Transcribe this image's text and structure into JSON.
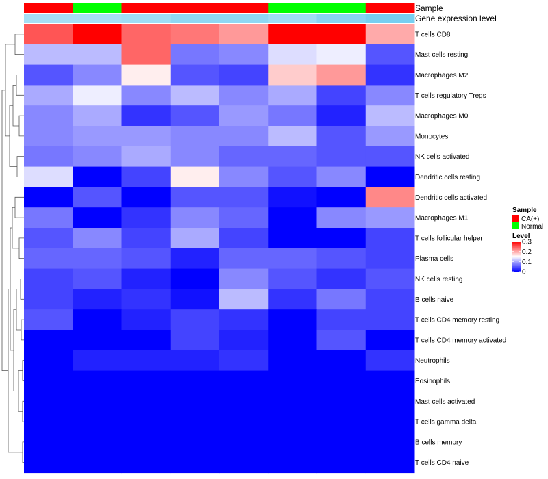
{
  "chart_data": {
    "type": "heatmap",
    "annotation_rows": {
      "sample_label": "Sample",
      "expression_label": "Gene expression level"
    },
    "columns": [
      {
        "sample": "CA(+)",
        "expression_level": 0.55
      },
      {
        "sample": "Normal",
        "expression_level": 0.55
      },
      {
        "sample": "CA(+)",
        "expression_level": 0.5
      },
      {
        "sample": "CA(+)",
        "expression_level": 0.4
      },
      {
        "sample": "CA(+)",
        "expression_level": 0.4
      },
      {
        "sample": "Normal",
        "expression_level": 0.5
      },
      {
        "sample": "Normal",
        "expression_level": 0.35
      },
      {
        "sample": "CA(+)",
        "expression_level": 0.25
      }
    ],
    "rows": [
      "T cells CD8",
      "Mast cells resting",
      "Macrophages M2",
      "T cells regulatory  Tregs",
      "Macrophages M0",
      "Monocytes",
      "NK cells activated",
      "Dendritic cells resting",
      "Dendritic cells activated",
      "Macrophages M1",
      "T cells follicular helper",
      "Plasma cells",
      "NK cells resting",
      "B cells naive",
      "T cells CD4 memory resting",
      "T cells CD4 memory activated",
      "Neutrophils",
      "Eosinophils",
      "Mast cells activated",
      "T cells gamma delta",
      "B cells memory",
      "T cells CD4 naive"
    ],
    "values": [
      [
        0.25,
        0.3,
        0.24,
        0.23,
        0.21,
        0.3,
        0.3,
        0.2
      ],
      [
        0.11,
        0.11,
        0.24,
        0.07,
        0.08,
        0.13,
        0.14,
        0.05
      ],
      [
        0.05,
        0.08,
        0.16,
        0.05,
        0.04,
        0.18,
        0.21,
        0.03
      ],
      [
        0.1,
        0.14,
        0.08,
        0.11,
        0.08,
        0.1,
        0.04,
        0.08
      ],
      [
        0.08,
        0.1,
        0.03,
        0.05,
        0.09,
        0.07,
        0.02,
        0.11
      ],
      [
        0.08,
        0.09,
        0.09,
        0.08,
        0.08,
        0.11,
        0.05,
        0.09
      ],
      [
        0.07,
        0.08,
        0.1,
        0.08,
        0.06,
        0.06,
        0.05,
        0.05
      ],
      [
        0.13,
        0.0,
        0.04,
        0.16,
        0.08,
        0.05,
        0.08,
        0.0
      ],
      [
        0.0,
        0.05,
        0.0,
        0.05,
        0.05,
        0.01,
        0.0,
        0.22
      ],
      [
        0.07,
        0.0,
        0.03,
        0.08,
        0.06,
        0.0,
        0.08,
        0.09
      ],
      [
        0.05,
        0.08,
        0.04,
        0.1,
        0.04,
        0.0,
        0.0,
        0.04
      ],
      [
        0.06,
        0.06,
        0.05,
        0.02,
        0.06,
        0.06,
        0.05,
        0.04
      ],
      [
        0.04,
        0.05,
        0.02,
        0.0,
        0.08,
        0.05,
        0.03,
        0.05
      ],
      [
        0.04,
        0.02,
        0.03,
        0.01,
        0.11,
        0.03,
        0.07,
        0.04
      ],
      [
        0.05,
        0.0,
        0.02,
        0.04,
        0.03,
        0.0,
        0.04,
        0.04
      ],
      [
        0.0,
        0.0,
        0.0,
        0.04,
        0.02,
        0.0,
        0.05,
        0.0
      ],
      [
        0.0,
        0.02,
        0.02,
        0.02,
        0.03,
        0.0,
        0.0,
        0.03
      ],
      [
        0.0,
        0.0,
        0.0,
        0.0,
        0.0,
        0.0,
        0.0,
        0.0
      ],
      [
        0.0,
        0.0,
        0.0,
        0.0,
        0.0,
        0.0,
        0.0,
        0.0
      ],
      [
        0.0,
        0.0,
        0.0,
        0.0,
        0.0,
        0.0,
        0.0,
        0.0
      ],
      [
        0.0,
        0.0,
        0.0,
        0.0,
        0.0,
        0.0,
        0.0,
        0.0
      ],
      [
        0.0,
        0.0,
        0.0,
        0.0,
        0.0,
        0.0,
        0.0,
        0.0
      ]
    ],
    "color_scale": {
      "min": 0,
      "max": 0.3,
      "low_color": "#0000ff",
      "mid_color": "#ffffff",
      "high_color": "#ff0000"
    },
    "legend": {
      "sample_title": "Sample",
      "sample_entries": [
        {
          "label": "CA(+)",
          "color": "#ff0000"
        },
        {
          "label": "Normal",
          "color": "#00ff00"
        }
      ],
      "level_title": "Level",
      "level_ticks": [
        "0.3",
        "0.2",
        "0.1",
        "0"
      ],
      "level_tick_values": [
        0.3,
        0.2,
        0.1,
        0
      ]
    },
    "expression_colors": {
      "low": "#4fc1ee",
      "high": "#eef8fb"
    },
    "grid": false,
    "dendrogram": "left"
  }
}
